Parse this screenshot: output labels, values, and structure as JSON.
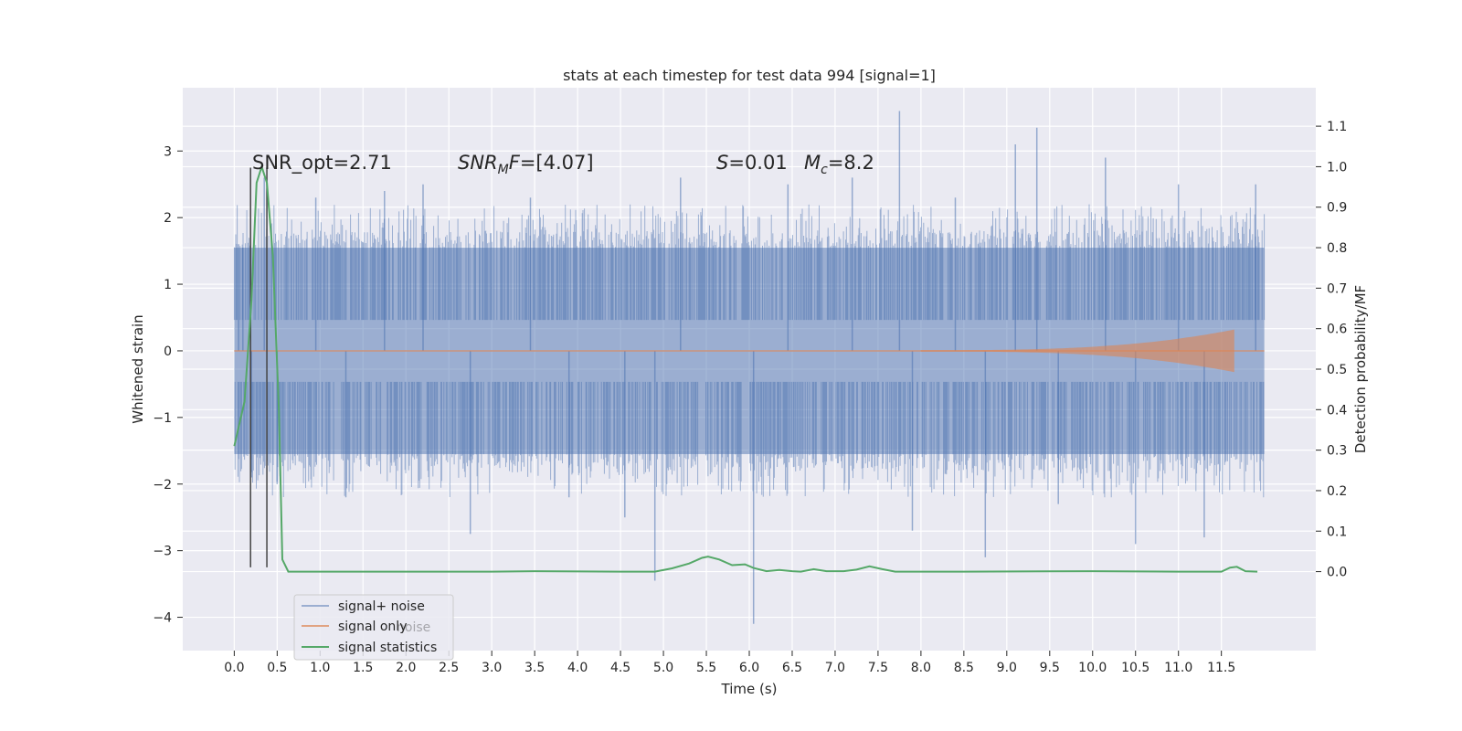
{
  "chart_data": {
    "type": "line",
    "title": "stats at each timestep for test data 994 [signal=1]",
    "xlabel": "Time (s)",
    "ylabel": "Whitened strain",
    "y2label": "Detection probability/MF",
    "xlim": [
      -0.6,
      12.6
    ],
    "ylim": [
      -4.5,
      3.95
    ],
    "y2lim": [
      -0.195,
      1.195
    ],
    "x_ticks": [
      "0.0",
      "0.5",
      "1.0",
      "1.5",
      "2.0",
      "2.5",
      "3.0",
      "3.5",
      "4.0",
      "4.5",
      "5.0",
      "5.5",
      "6.0",
      "6.5",
      "7.0",
      "7.5",
      "8.0",
      "8.5",
      "9.0",
      "9.5",
      "10.0",
      "10.5",
      "11.0",
      "11.5"
    ],
    "y_ticks": [
      "3",
      "2",
      "1",
      "0",
      "−1",
      "−2",
      "−3",
      "−4"
    ],
    "y2_ticks": [
      "1.1",
      "1.0",
      "0.9",
      "0.8",
      "0.7",
      "0.6",
      "0.5",
      "0.4",
      "0.3",
      "0.2",
      "0.1",
      "0.0"
    ],
    "grid": true,
    "legend_position": "lower-left",
    "annotations": {
      "snr_opt": "SNR_opt=2.71",
      "snr_mf": "=[4.07]",
      "snr_mf_base": "SNR",
      "snr_mf_sub": "M",
      "snr_mf_tail": "F",
      "s_label": "S",
      "s_value": "=0.01",
      "mc_label": "M",
      "mc_sub": "c",
      "mc_value": "=8.2",
      "legend_ghost": "noise"
    },
    "markers_x": [
      0.19,
      0.38
    ],
    "series": [
      {
        "name": "signal+ noise",
        "axis": "left",
        "color": "#4c72b0",
        "envelope_typical": 1.55,
        "envelope_peak": 2.2,
        "time_range": [
          0.0,
          12.0
        ],
        "spikes": [
          [
            0.05,
            1.6
          ],
          [
            0.1,
            1.55
          ],
          [
            0.2,
            -1.9
          ],
          [
            0.35,
            2.6
          ],
          [
            0.5,
            -2.0
          ],
          [
            0.95,
            2.3
          ],
          [
            1.3,
            -2.2
          ],
          [
            1.75,
            2.4
          ],
          [
            2.2,
            2.5
          ],
          [
            2.75,
            -2.75
          ],
          [
            3.45,
            2.3
          ],
          [
            3.9,
            -2.2
          ],
          [
            4.55,
            -2.5
          ],
          [
            4.9,
            -3.45
          ],
          [
            5.2,
            2.6
          ],
          [
            6.05,
            -4.1
          ],
          [
            6.45,
            2.5
          ],
          [
            7.2,
            2.6
          ],
          [
            7.75,
            3.6
          ],
          [
            7.9,
            -2.7
          ],
          [
            8.4,
            2.3
          ],
          [
            8.75,
            -3.1
          ],
          [
            9.1,
            3.1
          ],
          [
            9.35,
            3.35
          ],
          [
            9.6,
            -2.3
          ],
          [
            10.15,
            2.9
          ],
          [
            10.5,
            -2.9
          ],
          [
            11.0,
            2.5
          ],
          [
            11.3,
            -2.8
          ],
          [
            11.9,
            2.5
          ]
        ]
      },
      {
        "name": "signal only",
        "axis": "left",
        "color": "#dd8452",
        "chirp_start": 8.0,
        "chirp_end": 11.65,
        "peak_amplitude": 0.32
      },
      {
        "name": "signal statistics",
        "axis": "right",
        "color": "#55a868",
        "points": [
          [
            0.0,
            0.31
          ],
          [
            0.12,
            0.42
          ],
          [
            0.2,
            0.67
          ],
          [
            0.26,
            0.96
          ],
          [
            0.32,
            1.0
          ],
          [
            0.38,
            0.96
          ],
          [
            0.45,
            0.78
          ],
          [
            0.52,
            0.4
          ],
          [
            0.56,
            0.03
          ],
          [
            0.63,
            0.0
          ],
          [
            3.0,
            0.0
          ],
          [
            3.5,
            0.001
          ],
          [
            4.5,
            0.0
          ],
          [
            4.9,
            0.0
          ],
          [
            5.1,
            0.008
          ],
          [
            5.3,
            0.02
          ],
          [
            5.45,
            0.034
          ],
          [
            5.52,
            0.037
          ],
          [
            5.65,
            0.03
          ],
          [
            5.8,
            0.016
          ],
          [
            5.95,
            0.018
          ],
          [
            6.05,
            0.009
          ],
          [
            6.2,
            0.001
          ],
          [
            6.35,
            0.004
          ],
          [
            6.5,
            0.001
          ],
          [
            6.6,
            0.0
          ],
          [
            6.75,
            0.006
          ],
          [
            6.9,
            0.001
          ],
          [
            7.1,
            0.001
          ],
          [
            7.25,
            0.005
          ],
          [
            7.4,
            0.013
          ],
          [
            7.55,
            0.006
          ],
          [
            7.7,
            0.0
          ],
          [
            8.5,
            0.0
          ],
          [
            10.0,
            0.001
          ],
          [
            11.0,
            0.0
          ],
          [
            11.5,
            0.0
          ],
          [
            11.6,
            0.01
          ],
          [
            11.68,
            0.012
          ],
          [
            11.78,
            0.001
          ],
          [
            11.92,
            0.0
          ]
        ]
      }
    ]
  }
}
